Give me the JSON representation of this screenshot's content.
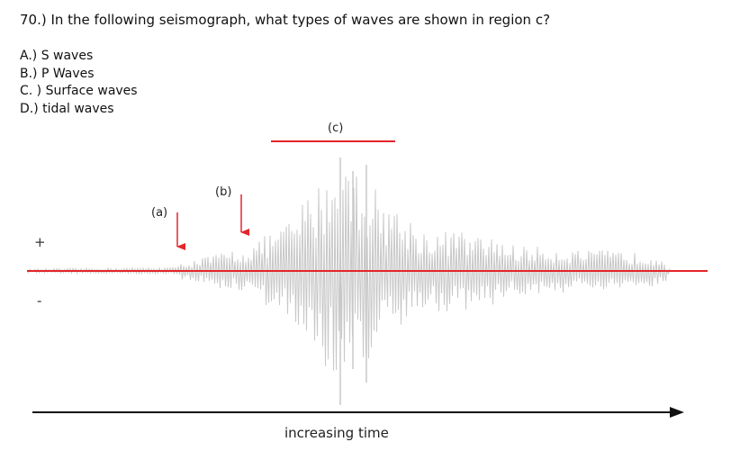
{
  "question": "70.) In the following seismograph, what types of waves are shown in region c?",
  "options": [
    "A.) S waves",
    "B.) P Waves",
    "C. ) Surface waves",
    "D.) tidal waves"
  ],
  "diagram": {
    "labels": {
      "a": "(a)",
      "b": "(b)",
      "c": "(c)"
    },
    "plus_sign": "+",
    "minus_sign": "-",
    "axis_label": "increasing time",
    "colors": {
      "marker": "#e5242b",
      "trace": "#c8c8c8",
      "axis": "#111111"
    }
  }
}
